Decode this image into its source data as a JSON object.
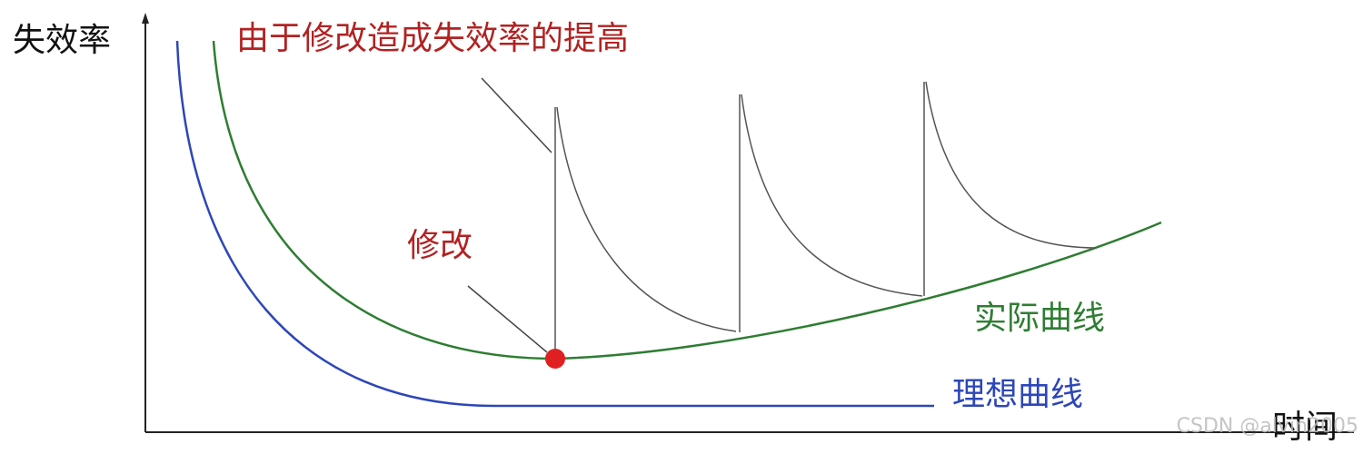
{
  "axis": {
    "y_label": "失效率",
    "x_label": "时间"
  },
  "annotations": {
    "modification_effect": "由于修改造成失效率的提高",
    "modification": "修改"
  },
  "curves": {
    "actual": "实际曲线",
    "ideal": "理想曲线"
  },
  "watermark": "CSDN @alvin2005"
}
